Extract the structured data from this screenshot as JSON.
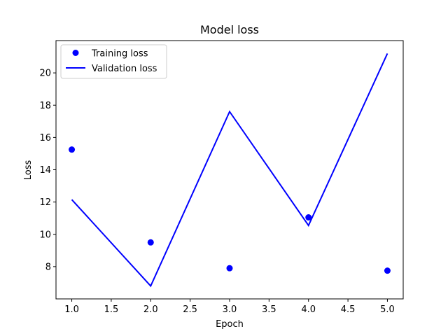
{
  "chart_data": {
    "type": "line",
    "title": "Model loss",
    "xlabel": "Epoch",
    "ylabel": "Loss",
    "xlim": [
      0.8,
      5.2
    ],
    "ylim": [
      6.0,
      22.0
    ],
    "xticks": [
      1.0,
      1.5,
      2.0,
      2.5,
      3.0,
      3.5,
      4.0,
      4.5,
      5.0
    ],
    "xtick_labels": [
      "1.0",
      "1.5",
      "2.0",
      "2.5",
      "3.0",
      "3.5",
      "4.0",
      "4.5",
      "5.0"
    ],
    "yticks": [
      8,
      10,
      12,
      14,
      16,
      18,
      20
    ],
    "ytick_labels": [
      "8",
      "10",
      "12",
      "14",
      "16",
      "18",
      "20"
    ],
    "grid": false,
    "legend_position": "top-left",
    "x": [
      1,
      2,
      3,
      4,
      5
    ],
    "series": [
      {
        "name": "Training loss",
        "style": "markers",
        "color": "#0000ff",
        "values": [
          15.25,
          9.5,
          7.9,
          11.05,
          7.75
        ]
      },
      {
        "name": "Validation loss",
        "style": "line",
        "color": "#0000ff",
        "values": [
          12.15,
          6.8,
          17.6,
          10.55,
          21.2
        ]
      }
    ]
  }
}
